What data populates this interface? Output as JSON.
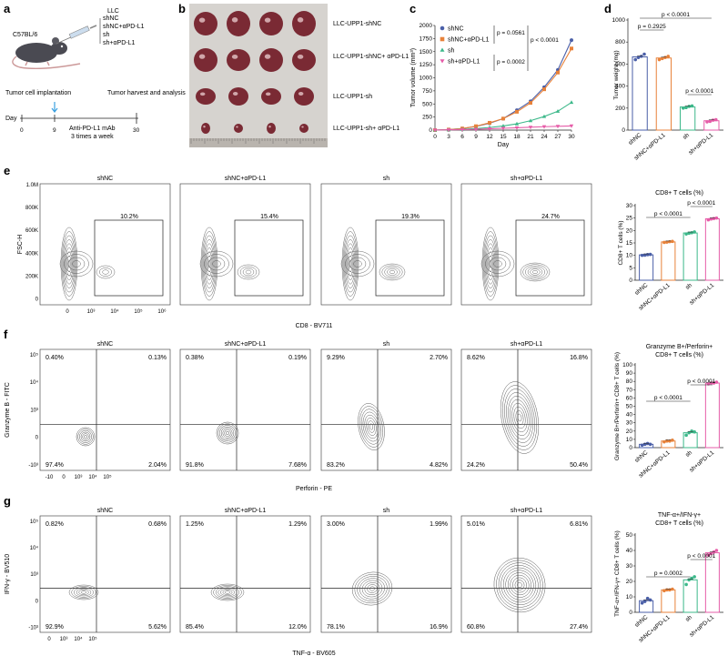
{
  "colors": {
    "shNC": "#4a5fa8",
    "shNC_aPD": "#e8823a",
    "sh": "#3cb88a",
    "sh_aPD": "#e65ca8",
    "contour": "#555555",
    "tissue": "#7a2a34"
  },
  "panels": {
    "a": "a",
    "b": "b",
    "c": "c",
    "d": "d",
    "e": "e",
    "f": "f",
    "g": "g"
  },
  "panel_a": {
    "mouse_strain": "C57BL/6",
    "llc": "LLC",
    "groups": [
      "shNC",
      "shNC+αPD-L1",
      "sh",
      "sh+αPD-L1"
    ],
    "implantation": "Tumor cell implantation",
    "harvest": "Tumor harvest and analysis",
    "day_label": "Day",
    "ticks": [
      "0",
      "9",
      "30"
    ],
    "mab_line1": "Anti-PD-L1 mAb",
    "mab_line2": "3 times a week"
  },
  "panel_b": {
    "rows": [
      "LLC-UPP1-shNC",
      "LLC-UPP1-shNC+ αPD-L1",
      "LLC-UPP1-sh",
      "LLC-UPP1-sh+ αPD-L1"
    ]
  },
  "chart_data": [
    {
      "panel": "c",
      "type": "line",
      "x": [
        0,
        3,
        6,
        9,
        12,
        15,
        18,
        21,
        24,
        27,
        30
      ],
      "xlabel": "Day",
      "ylabel": "Tumor volume (mm³)",
      "ylim": [
        0,
        2000
      ],
      "yticks": [
        0,
        250,
        500,
        750,
        1000,
        1250,
        1500,
        1750,
        2000
      ],
      "series": [
        {
          "name": "shNC",
          "values": [
            0,
            10,
            30,
            70,
            130,
            220,
            380,
            550,
            820,
            1150,
            1720
          ]
        },
        {
          "name": "shNC+αPD-L1",
          "values": [
            0,
            10,
            30,
            75,
            140,
            220,
            350,
            520,
            780,
            1100,
            1560
          ]
        },
        {
          "name": "sh",
          "values": [
            0,
            5,
            15,
            30,
            50,
            80,
            120,
            180,
            260,
            360,
            530
          ]
        },
        {
          "name": "sh+αPD-L1",
          "values": [
            0,
            5,
            10,
            15,
            25,
            35,
            45,
            55,
            65,
            72,
            80
          ]
        }
      ],
      "annotations": [
        "p = 0.0561",
        "p < 0.0001",
        "p = 0.0002"
      ]
    },
    {
      "panel": "d",
      "type": "bar",
      "ylabel": "Tumor weight (mg)",
      "ylim": [
        0,
        1000
      ],
      "yticks": [
        0,
        200,
        400,
        600,
        800,
        1000
      ],
      "categories": [
        "shNC",
        "shNC+αPD-L1",
        "sh",
        "sh+αPD-L1"
      ],
      "values": [
        665,
        655,
        210,
        85
      ],
      "points": [
        [
          640,
          660,
          670,
          690
        ],
        [
          640,
          650,
          660,
          670
        ],
        [
          200,
          205,
          215,
          220
        ],
        [
          75,
          80,
          90,
          95
        ]
      ],
      "annotations": [
        "p < 0.0001",
        "p = 0.2925",
        "p < 0.0001"
      ]
    },
    {
      "panel": "e",
      "type": "bar",
      "title": "CD8+ T cells (%)",
      "ylabel": "CD8+ T cells (%)",
      "ylim": [
        0,
        30
      ],
      "yticks": [
        0,
        5,
        10,
        15,
        20,
        25,
        30
      ],
      "categories": [
        "shNC",
        "shNC+αPD-L1",
        "sh",
        "sh+αPD-L1"
      ],
      "values": [
        10.2,
        15.4,
        19.0,
        24.7
      ],
      "points": [
        [
          10.0,
          10.1,
          10.3,
          10.4
        ],
        [
          15.2,
          15.3,
          15.5,
          15.6
        ],
        [
          18.6,
          18.9,
          19.1,
          19.4
        ],
        [
          24.3,
          24.6,
          24.8,
          25.0
        ]
      ],
      "annotations": [
        "p < 0.0001",
        "p < 0.0001"
      ]
    },
    {
      "panel": "f",
      "type": "bar",
      "title": "Granzyme B+/Perforin+",
      "title2": "CD8+ T cells (%)",
      "ylabel": "Granzyme B+/Perforin+ CD8+ T cells (%)",
      "ylim": [
        0,
        100
      ],
      "yticks": [
        0,
        10,
        20,
        30,
        40,
        50,
        60,
        70,
        80,
        90,
        100
      ],
      "categories": [
        "shNC",
        "shNC+αPD-L1",
        "sh",
        "sh+αPD-L1"
      ],
      "values": [
        4,
        8,
        18,
        78
      ],
      "points": [
        [
          3,
          4,
          5,
          4
        ],
        [
          7,
          8,
          8,
          9
        ],
        [
          15,
          18,
          20,
          19
        ],
        [
          77,
          78,
          78,
          79
        ]
      ],
      "annotations": [
        "p < 0.0001",
        "p < 0.0001"
      ]
    },
    {
      "panel": "g",
      "type": "bar",
      "title": "TNF-α+/IFN-γ+",
      "title2": "CD8+ T cells (%)",
      "ylabel": "TNF-α+/IFN-γ+ CD8+ T cells (%)",
      "ylim": [
        0,
        50
      ],
      "yticks": [
        0,
        10,
        20,
        30,
        40,
        50
      ],
      "categories": [
        "shNC",
        "shNC+αPD-L1",
        "sh",
        "sh+αPD-L1"
      ],
      "values": [
        7.5,
        14.5,
        21,
        38.5
      ],
      "points": [
        [
          6,
          7,
          9,
          8
        ],
        [
          14,
          14.5,
          14.5,
          15
        ],
        [
          18,
          21,
          22,
          23
        ],
        [
          37,
          38,
          39,
          40
        ]
      ],
      "annotations": [
        "p = 0.0002",
        "p < 0.0001"
      ]
    }
  ],
  "flow_e": {
    "titles": [
      "shNC",
      "shNC+αPD-L1",
      "sh",
      "sh+αPD-L1"
    ],
    "pcts": [
      "10.2%",
      "15.4%",
      "19.3%",
      "24.7%"
    ],
    "ylabel": "FSC-H",
    "xlabel": "CD8 - BV711",
    "yticks": [
      "1.0M",
      "800K",
      "600K",
      "400K",
      "200K",
      "0"
    ],
    "xticks": [
      "0",
      "10³",
      "10⁴",
      "10⁵",
      "10⁶"
    ]
  },
  "flow_f": {
    "titles": [
      "shNC",
      "shNC+αPD-L1",
      "sh",
      "sh+αPD-L1"
    ],
    "quads": [
      [
        "0.40%",
        "0.13%",
        "97.4%",
        "2.04%"
      ],
      [
        "0.38%",
        "0.19%",
        "91.8%",
        "7.68%"
      ],
      [
        "9.29%",
        "2.70%",
        "83.2%",
        "4.82%"
      ],
      [
        "8.62%",
        "16.8%",
        "24.2%",
        "50.4%"
      ]
    ],
    "ylabel": "Granzyme B - FITC",
    "xlabel": "Perforin - PE",
    "yticks": [
      "10⁵",
      "10⁴",
      "10³",
      "0",
      "-10³"
    ],
    "xticks": [
      "-10",
      "0",
      "10³",
      "10⁴",
      "10⁵"
    ]
  },
  "flow_g": {
    "titles": [
      "shNC",
      "shNC+αPD-L1",
      "sh",
      "sh+αPD-L1"
    ],
    "quads": [
      [
        "0.82%",
        "0.68%",
        "92.9%",
        "5.62%"
      ],
      [
        "1.25%",
        "1.29%",
        "85.4%",
        "12.0%"
      ],
      [
        "3.00%",
        "1.99%",
        "78.1%",
        "16.9%"
      ],
      [
        "5.01%",
        "6.81%",
        "60.8%",
        "27.4%"
      ]
    ],
    "ylabel": "IFN-γ - BV510",
    "xlabel": "TNF-α - BV605",
    "yticks": [
      "10⁵",
      "10⁴",
      "10³",
      "0",
      "-10³"
    ],
    "xticks": [
      "0",
      "10³",
      "10⁴",
      "10⁵"
    ]
  }
}
